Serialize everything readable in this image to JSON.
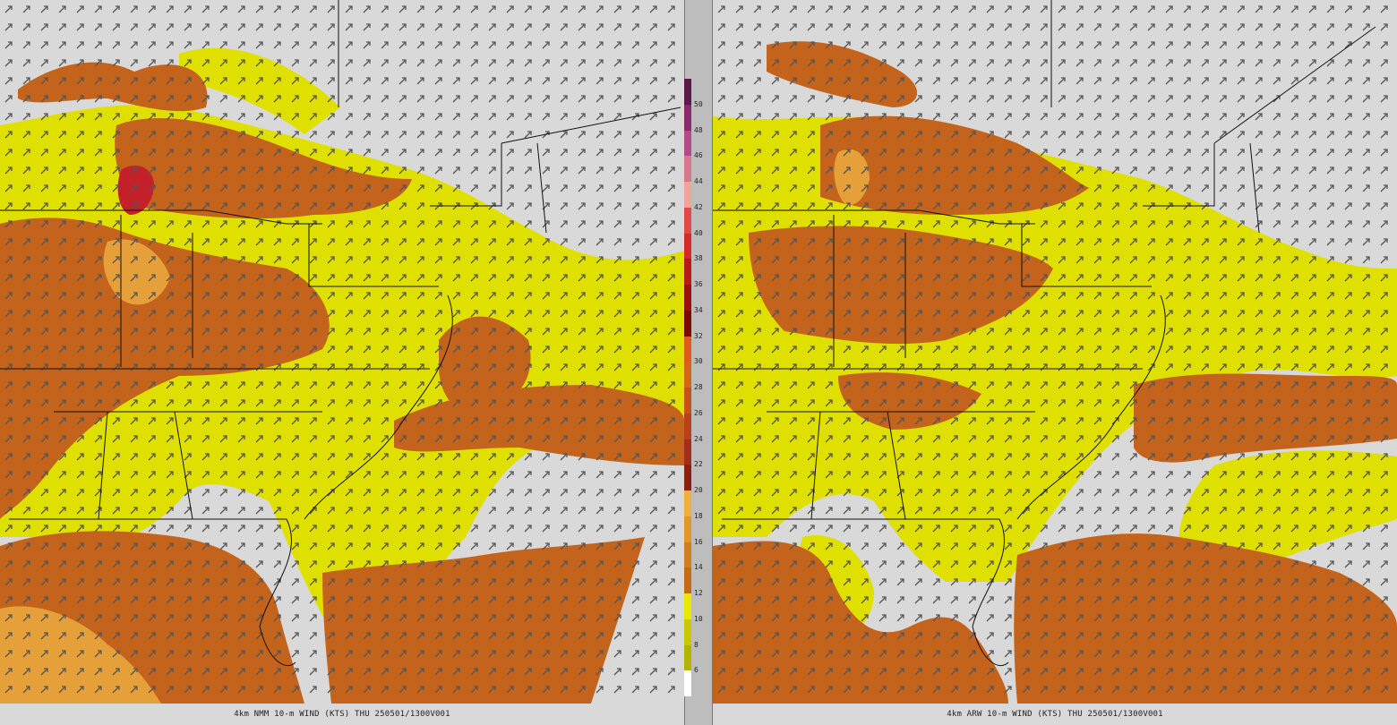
{
  "panels": [
    {
      "id": "left",
      "caption": "4km NMM 10-m WIND (KTS) THU 250501/1300V001",
      "model": "NMM"
    },
    {
      "id": "right",
      "caption": "4km ARW 10-m WIND (KTS) THU 250501/1300V001",
      "model": "ARW"
    }
  ],
  "colorbar": {
    "labels": [
      "50",
      "48",
      "46",
      "44",
      "42",
      "40",
      "38",
      "36",
      "34",
      "32",
      "30",
      "28",
      "26",
      "24",
      "22",
      "20",
      "18",
      "16",
      "14",
      "12",
      "10",
      "8",
      "6"
    ],
    "colors": [
      "#5c1a4a",
      "#8a2a6e",
      "#b44a8a",
      "#d8788c",
      "#f0a49a",
      "#e04a4a",
      "#d42a2a",
      "#b81a1a",
      "#9a1010",
      "#7a0a0a",
      "#e05a20",
      "#d8641a",
      "#c8501a",
      "#b8401a",
      "#a0301a",
      "#8a2010",
      "#f0b040",
      "#e0982a",
      "#d08020",
      "#c46a18",
      "#e8e800",
      "#c8c800",
      "#b4b400",
      "#ffffff"
    ],
    "value_colors": {
      "calm": "#d9d9d9",
      "6_to_10": "#e0e000",
      "10_to_12": "#d29020",
      "12_to_16": "#c4641c",
      "16_to_20": "#e6a03a",
      "30_plus": "#c4202a"
    }
  },
  "icons": {
    "wind_arrow": "wind-vector-arrow"
  }
}
